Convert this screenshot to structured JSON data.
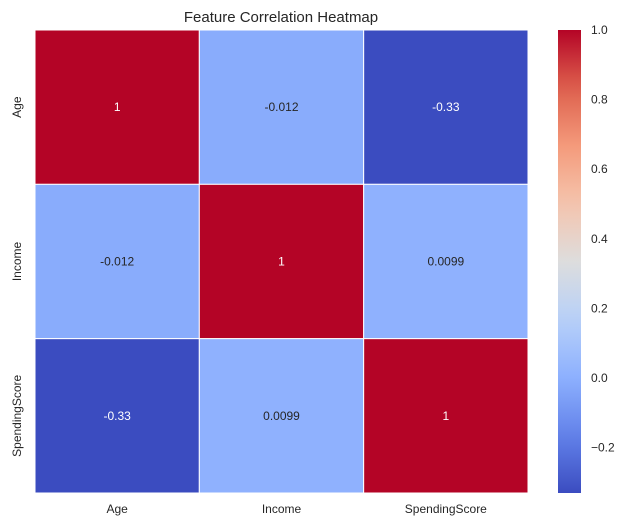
{
  "chart_data": {
    "type": "heatmap",
    "title": "Feature Correlation Heatmap",
    "x_categories": [
      "Age",
      "Income",
      "SpendingScore"
    ],
    "y_categories": [
      "Age",
      "Income",
      "SpendingScore"
    ],
    "values": [
      [
        1,
        -0.012,
        -0.33
      ],
      [
        -0.012,
        1,
        0.0099
      ],
      [
        -0.33,
        0.0099,
        1
      ]
    ],
    "annotations": [
      [
        "1",
        "-0.012",
        "-0.33"
      ],
      [
        "-0.012",
        "1",
        "0.0099"
      ],
      [
        "-0.33",
        "0.0099",
        "1"
      ]
    ],
    "colormap": "coolwarm",
    "colorbar": {
      "range": [
        -0.33,
        1.0
      ],
      "ticks": [
        -0.2,
        0.0,
        0.2,
        0.4,
        0.6,
        0.8,
        1.0
      ],
      "tick_labels": [
        "−0.2",
        "0.0",
        "0.2",
        "0.4",
        "0.6",
        "0.8",
        "1.0"
      ]
    },
    "grid": false,
    "cell_separator_color": "#ffffff"
  }
}
